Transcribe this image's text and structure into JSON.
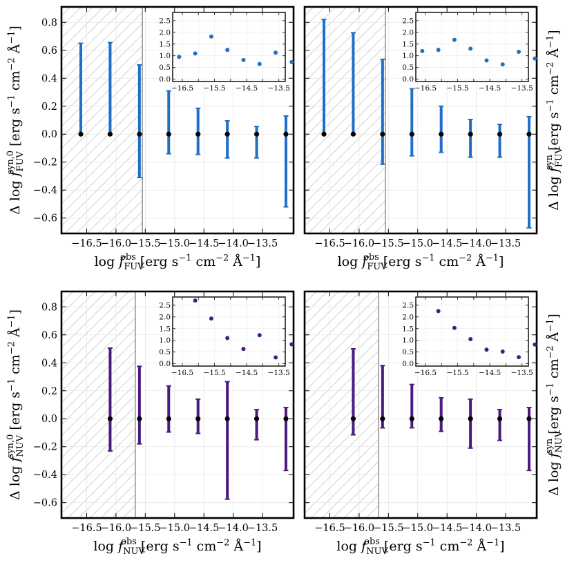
{
  "chart_data": [
    {
      "type": "errorbar",
      "position": "top-left",
      "color": "#1f6fc9",
      "xlabel": "log f_FUV^obs [erg s^-1 cm^-2 Å^-1]",
      "ylabel": "Δ log f_FUV^syn,0 [erg s^-1 cm^-2 Å^-1]",
      "xlabel_parts": {
        "pre": "log ",
        "f": "f",
        "sub": "FUV",
        "sup": "obs",
        "unit": " [erg s",
        "e1": "−1",
        "cm": " cm",
        "e2": "−2",
        "ang": " Å",
        "e3": "−1",
        "end": "]"
      },
      "ylabel_parts": {
        "pre": "Δ log ",
        "f": "f",
        "sub": "FUV",
        "sup": "syn,0",
        "unit": " [erg s",
        "e1": "−1",
        "cm": " cm",
        "e2": "−2",
        "ang": " Å",
        "e3": "−1",
        "end": "]"
      },
      "xlim": [
        -16.93,
        -12.97
      ],
      "ylim": [
        -0.71,
        0.91
      ],
      "xticks": [
        -16.5,
        -16.0,
        -15.5,
        -15.0,
        -14.5,
        -14.0,
        -13.5
      ],
      "xtick_labels": [
        "−16.5",
        "−16.0",
        "−15.5",
        "−15.0",
        "−14.5",
        "−14.0",
        "−13.5"
      ],
      "yticks": [
        -0.6,
        -0.4,
        -0.2,
        0.0,
        0.2,
        0.4,
        0.6,
        0.8
      ],
      "ytick_labels": [
        "−0.6",
        "−0.4",
        "−0.2",
        "0.0",
        "0.2",
        "0.4",
        "0.6",
        "0.8"
      ],
      "ylabel_side": "left",
      "cutoff_x": -15.55,
      "x": [
        -16.6,
        -16.1,
        -15.6,
        -15.1,
        -14.6,
        -14.1,
        -13.6,
        -13.1
      ],
      "y": [
        0,
        0,
        0,
        0,
        0,
        0,
        0,
        0
      ],
      "err_low": [
        0.0,
        0.0,
        -0.31,
        -0.14,
        -0.145,
        -0.17,
        -0.17,
        -0.52
      ],
      "err_high": [
        0.65,
        0.655,
        0.495,
        0.31,
        0.185,
        0.095,
        0.055,
        0.13
      ],
      "inset": {
        "xlim": [
          -16.8,
          -13.3
        ],
        "ylim": [
          -0.1,
          2.85
        ],
        "xticks": [
          -16.5,
          -15.5,
          -14.5,
          -13.5
        ],
        "xtick_labels": [
          "−16.5",
          "−15.5",
          "−14.5",
          "−13.5"
        ],
        "xticks_unlabeled": [
          -16.0,
          -15.0,
          -14.0
        ],
        "yticks": [
          0.0,
          0.5,
          1.0,
          1.5,
          2.0,
          2.5
        ],
        "ytick_labels": [
          "0.0",
          "0.5",
          "1.0",
          "1.5",
          "2.0",
          "2.5"
        ],
        "x": [
          -16.6,
          -16.1,
          -15.6,
          -15.1,
          -14.6,
          -14.1,
          -13.6,
          -13.1
        ],
        "y": [
          0.95,
          1.1,
          1.82,
          1.25,
          0.82,
          0.65,
          1.13,
          0.73
        ]
      }
    },
    {
      "type": "errorbar",
      "position": "top-right",
      "color": "#1f6fc9",
      "xlabel": "log f_FUV^obs [erg s^-1 cm^-2 Å^-1]",
      "ylabel": "Δ log f_FUV^syn [erg s^-1 cm^-2 Å^-1]",
      "xlabel_parts": {
        "pre": "log ",
        "f": "f",
        "sub": "FUV",
        "sup": "obs",
        "unit": " [erg s",
        "e1": "−1",
        "cm": " cm",
        "e2": "−2",
        "ang": " Å",
        "e3": "−1",
        "end": "]"
      },
      "ylabel_parts": {
        "pre": "Δ log ",
        "f": "f",
        "sub": "FUV",
        "sup": "syn",
        "unit": " [erg s",
        "e1": "−1",
        "cm": " cm",
        "e2": "−2",
        "ang": " Å",
        "e3": "−1",
        "end": "]"
      },
      "xlim": [
        -16.93,
        -12.97
      ],
      "ylim": [
        -0.71,
        0.91
      ],
      "xticks": [
        -16.5,
        -16.0,
        -15.5,
        -15.0,
        -14.5,
        -14.0,
        -13.5
      ],
      "xtick_labels": [
        "−16.5",
        "−16.0",
        "−15.5",
        "−15.0",
        "−14.5",
        "−14.0",
        "−13.5"
      ],
      "yticks": [
        -0.6,
        -0.4,
        -0.2,
        0.0,
        0.2,
        0.4,
        0.6,
        0.8
      ],
      "ytick_labels": [],
      "ylabel_side": "right",
      "cutoff_x": -15.55,
      "x": [
        -16.6,
        -16.1,
        -15.6,
        -15.1,
        -14.6,
        -14.1,
        -13.6,
        -13.1
      ],
      "y": [
        0,
        0,
        0,
        0,
        0,
        0,
        0,
        0
      ],
      "err_low": [
        0.0,
        0.0,
        -0.215,
        -0.155,
        -0.13,
        -0.165,
        -0.165,
        -0.67
      ],
      "err_high": [
        0.82,
        0.725,
        0.535,
        0.325,
        0.2,
        0.105,
        0.07,
        0.125
      ],
      "inset": {
        "xlim": [
          -16.8,
          -13.3
        ],
        "ylim": [
          -0.1,
          2.85
        ],
        "xticks": [
          -16.5,
          -15.5,
          -14.5,
          -13.5
        ],
        "xtick_labels": [
          "−16.5",
          "−15.5",
          "−14.5",
          "−13.5"
        ],
        "xticks_unlabeled": [
          -16.0,
          -15.0,
          -14.0
        ],
        "yticks": [
          0.0,
          0.5,
          1.0,
          1.5,
          2.0,
          2.5
        ],
        "ytick_labels": [
          "0.0",
          "0.5",
          "1.0",
          "1.5",
          "2.0",
          "2.5"
        ],
        "x": [
          -16.6,
          -16.1,
          -15.6,
          -15.1,
          -14.6,
          -14.1,
          -13.6,
          -13.1
        ],
        "y": [
          1.2,
          1.25,
          1.68,
          1.3,
          0.8,
          0.63,
          1.17,
          0.88
        ]
      }
    },
    {
      "type": "errorbar",
      "position": "bottom-left",
      "color": "#4b1a80",
      "xlabel": "log f_NUV^obs [erg s^-1 cm^-2 Å^-1]",
      "ylabel": "Δ log f_NUV^syn,0 [erg s^-1 cm^-2 Å^-1]",
      "xlabel_parts": {
        "pre": "log ",
        "f": "f",
        "sub": "NUV",
        "sup": "obs",
        "unit": " [erg s",
        "e1": "−1",
        "cm": " cm",
        "e2": "−2",
        "ang": " Å",
        "e3": "−1",
        "end": "]"
      },
      "ylabel_parts": {
        "pre": "Δ log ",
        "f": "f",
        "sub": "NUV",
        "sup": "syn,0",
        "unit": " [erg s",
        "e1": "−1",
        "cm": " cm",
        "e2": "−2",
        "ang": " Å",
        "e3": "−1",
        "end": "]"
      },
      "xlim": [
        -16.93,
        -12.97
      ],
      "ylim": [
        -0.71,
        0.91
      ],
      "xticks": [
        -16.5,
        -16.0,
        -15.5,
        -15.0,
        -14.5,
        -14.0,
        -13.5
      ],
      "xtick_labels": [
        "−16.5",
        "−16.0",
        "−15.5",
        "−15.0",
        "−14.5",
        "−14.0",
        "−13.5"
      ],
      "yticks": [
        -0.6,
        -0.4,
        -0.2,
        0.0,
        0.2,
        0.4,
        0.6,
        0.8
      ],
      "ytick_labels": [
        "−0.6",
        "−0.4",
        "−0.2",
        "0.0",
        "0.2",
        "0.4",
        "0.6",
        "0.8"
      ],
      "ylabel_side": "left",
      "cutoff_x": -15.67,
      "x": [
        -16.1,
        -15.6,
        -15.1,
        -14.6,
        -14.1,
        -13.6,
        -13.1
      ],
      "y": [
        0,
        0,
        0,
        0,
        0,
        0,
        0
      ],
      "err_low": [
        -0.23,
        -0.18,
        -0.095,
        -0.105,
        -0.575,
        -0.15,
        -0.37
      ],
      "err_high": [
        0.505,
        0.375,
        0.235,
        0.14,
        0.265,
        0.065,
        0.08
      ],
      "inset": {
        "xlim": [
          -16.8,
          -13.3
        ],
        "ylim": [
          -0.1,
          2.85
        ],
        "xticks": [
          -16.5,
          -15.5,
          -14.5,
          -13.5
        ],
        "xtick_labels": [
          "−16.5",
          "−15.5",
          "−14.5",
          "−13.5"
        ],
        "xticks_unlabeled": [
          -16.0,
          -15.0,
          -14.0
        ],
        "yticks": [
          0.0,
          0.5,
          1.0,
          1.5,
          2.0,
          2.5
        ],
        "ytick_labels": [
          "0.0",
          "0.5",
          "1.0",
          "1.5",
          "2.0",
          "2.5"
        ],
        "x": [
          -16.1,
          -15.6,
          -15.1,
          -14.6,
          -14.1,
          -13.6,
          -13.1
        ],
        "y": [
          2.7,
          1.93,
          1.1,
          0.63,
          1.22,
          0.27,
          0.83
        ]
      }
    },
    {
      "type": "errorbar",
      "position": "bottom-right",
      "color": "#4b1a80",
      "xlabel": "log f_NUV^obs [erg s^-1 cm^-2 Å^-1]",
      "ylabel": "Δ log f_NUV^syn [erg s^-1 cm^-2 Å^-1]",
      "xlabel_parts": {
        "pre": "log ",
        "f": "f",
        "sub": "NUV",
        "sup": "obs",
        "unit": " [erg s",
        "e1": "−1",
        "cm": " cm",
        "e2": "−2",
        "ang": " Å",
        "e3": "−1",
        "end": "]"
      },
      "ylabel_parts": {
        "pre": "Δ log ",
        "f": "f",
        "sub": "NUV",
        "sup": "syn",
        "unit": " [erg s",
        "e1": "−1",
        "cm": " cm",
        "e2": "−2",
        "ang": " Å",
        "e3": "−1",
        "end": "]"
      },
      "xlim": [
        -16.93,
        -12.97
      ],
      "ylim": [
        -0.71,
        0.91
      ],
      "xticks": [
        -16.5,
        -16.0,
        -15.5,
        -15.0,
        -14.5,
        -14.0,
        -13.5
      ],
      "xtick_labels": [
        "−16.5",
        "−16.0",
        "−15.5",
        "−15.0",
        "−14.5",
        "−14.0",
        "−13.5"
      ],
      "yticks": [
        -0.6,
        -0.4,
        -0.2,
        0.0,
        0.2,
        0.4,
        0.6,
        0.8
      ],
      "ytick_labels": [],
      "ylabel_side": "right",
      "cutoff_x": -15.67,
      "x": [
        -16.1,
        -15.6,
        -15.1,
        -14.6,
        -14.1,
        -13.6,
        -13.1
      ],
      "y": [
        0,
        0,
        0,
        0,
        0,
        0,
        0
      ],
      "err_low": [
        -0.115,
        -0.065,
        -0.065,
        -0.09,
        -0.21,
        -0.155,
        -0.37
      ],
      "err_high": [
        0.5,
        0.38,
        0.245,
        0.15,
        0.14,
        0.065,
        0.08
      ],
      "inset": {
        "xlim": [
          -16.8,
          -13.3
        ],
        "ylim": [
          -0.1,
          2.85
        ],
        "xticks": [
          -16.5,
          -15.5,
          -14.5,
          -13.5
        ],
        "xtick_labels": [
          "−16.5",
          "−15.5",
          "−14.5",
          "−13.5"
        ],
        "xticks_unlabeled": [
          -16.0,
          -15.0,
          -14.0
        ],
        "yticks": [
          0.0,
          0.5,
          1.0,
          1.5,
          2.0,
          2.5
        ],
        "ytick_labels": [
          "0.0",
          "0.5",
          "1.0",
          "1.5",
          "2.0",
          "2.5"
        ],
        "x": [
          -16.1,
          -15.6,
          -15.1,
          -14.6,
          -14.1,
          -13.6,
          -13.1
        ],
        "y": [
          2.25,
          1.53,
          1.05,
          0.6,
          0.52,
          0.28,
          0.82
        ]
      }
    }
  ]
}
